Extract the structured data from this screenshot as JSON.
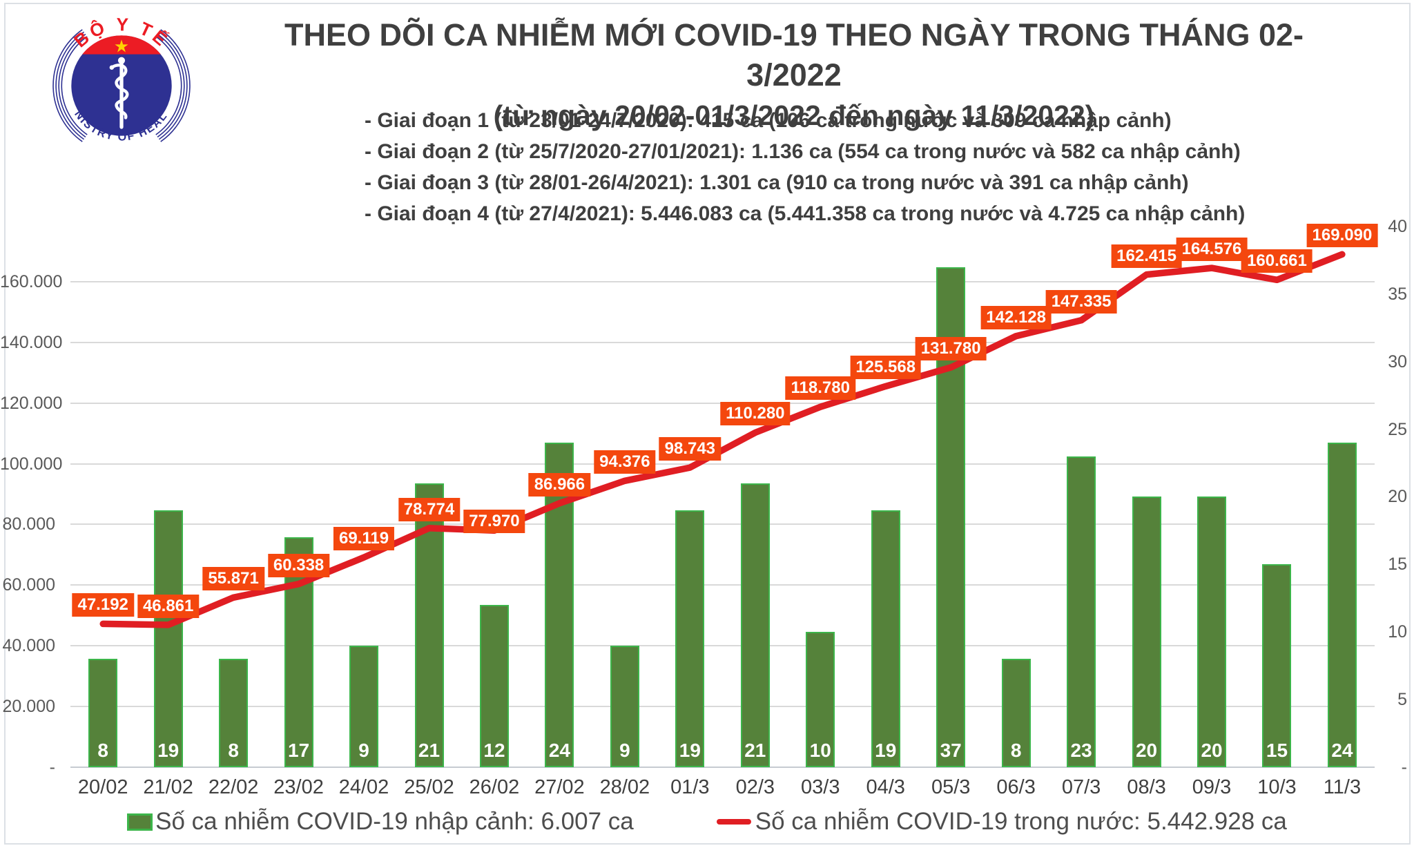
{
  "logo": {
    "arc_top": "BỘ Y TẾ",
    "arc_bottom": "MINISTRY OF HEALTH"
  },
  "chart_data": {
    "type": "combo-bar-line",
    "title": "THEO DÕI CA NHIỄM MỚI COVID-19 THEO NGÀY TRONG THÁNG 02-3/2022",
    "subtitle": "(từ ngày 20/02-01/3/2022 đến ngày 11/3/2022)",
    "annotations": [
      "- Giai đoạn 1 (từ 23/01-24/7/2020): 415 ca (106 ca trong nước và 309 ca nhập cảnh)",
      "- Giai đoạn 2 (từ 25/7/2020-27/01/2021): 1.136 ca (554 ca trong nước và 582 ca nhập cảnh)",
      "- Giai đoạn 3 (từ 28/01-26/4/2021): 1.301 ca (910 ca trong nước và 391 ca nhập cảnh)",
      "- Giai đoạn 4 (từ 27/4/2021): 5.446.083 ca (5.441.358 ca trong nước và 4.725 ca nhập cảnh)"
    ],
    "categories": [
      "20/02",
      "21/02",
      "22/02",
      "23/02",
      "24/02",
      "25/02",
      "26/02",
      "27/02",
      "28/02",
      "01/3",
      "02/3",
      "03/3",
      "04/3",
      "05/3",
      "06/3",
      "07/3",
      "08/3",
      "09/3",
      "10/3",
      "11/3"
    ],
    "series": [
      {
        "name": "Số ca nhiễm COVID-19 nhập cảnh: 6.007 ca",
        "type": "bar",
        "axis": "right",
        "color": "#55823A",
        "values": [
          8,
          19,
          8,
          17,
          9,
          21,
          12,
          24,
          9,
          19,
          21,
          10,
          19,
          37,
          8,
          23,
          20,
          20,
          15,
          24
        ]
      },
      {
        "name": "Số ca nhiễm COVID-19 trong nước: 5.442.928 ca",
        "type": "line",
        "axis": "left",
        "color": "#E01E23",
        "values": [
          47192,
          46861,
          55871,
          60338,
          69119,
          78774,
          77970,
          86966,
          94376,
          98743,
          110280,
          118780,
          125568,
          131780,
          142128,
          147335,
          162415,
          164576,
          160661,
          169090
        ],
        "value_labels": [
          "47.192",
          "46.861",
          "55.871",
          "60.338",
          "69.119",
          "78.774",
          "77.970",
          "86.966",
          "94.376",
          "98.743",
          "110.280",
          "118.780",
          "125.568",
          "131.780",
          "142.128",
          "147.335",
          "162.415",
          "164.576",
          "160.661",
          "169.090"
        ]
      }
    ],
    "left_axis": {
      "min": 0,
      "max": 180000,
      "tick_step": 20000,
      "tick_labels_top_down": [
        "160.000",
        "140.000",
        "120.000",
        "100.000",
        "80.000",
        "60.000",
        "40.000",
        "20.000",
        "-"
      ]
    },
    "right_axis": {
      "min": 0,
      "max": 41,
      "tick_step": 5,
      "tick_labels_top_down": [
        "40",
        "35",
        "30",
        "25",
        "20",
        "15",
        "10",
        "5",
        "-"
      ]
    },
    "grid": true,
    "legend_position": "bottom"
  },
  "legend": {
    "bar_label": "Số ca nhiễm COVID-19 nhập cảnh: 6.007 ca",
    "line_label": "Số ca nhiễm COVID-19 trong nước: 5.442.928 ca"
  },
  "colors": {
    "bar": "#55823A",
    "bar_highlight": "#3CB54A",
    "line": "#E01E23",
    "label_bg": "#F4470E",
    "grid": "#D9D9D9",
    "text_dark": "#3F3F3F",
    "axis_text": "#595959",
    "logo_blue": "#2E3192",
    "logo_red": "#EC1C24",
    "logo_star": "#FFD200"
  }
}
